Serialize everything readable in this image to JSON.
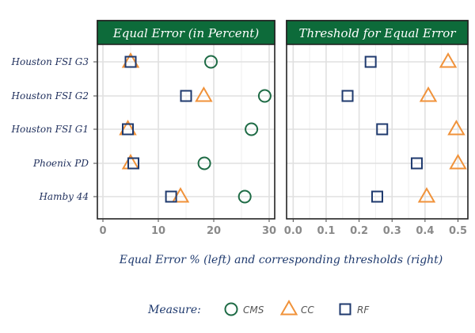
{
  "chart_data": {
    "type": "scatter",
    "categories": [
      "Houston FSI G3",
      "Houston FSI G2",
      "Houston FSI G1",
      "Phoenix PD",
      "Hamby 44"
    ],
    "xlabel": "Equal Error % (left) and corresponding thresholds (right)",
    "legend": {
      "title": "Measure:",
      "placement": "bottom",
      "entries": [
        {
          "name": "CMS",
          "shape": "circle",
          "color": "#1e6b45"
        },
        {
          "name": "CC",
          "shape": "triangle",
          "color": "#f0923a"
        },
        {
          "name": "RF",
          "shape": "square",
          "color": "#1f3a6e"
        }
      ]
    },
    "grid": true,
    "panels": [
      {
        "title": "Equal Error (in Percent)",
        "xlim": [
          -1,
          31
        ],
        "xticks": [
          0,
          10,
          20,
          30
        ],
        "xtick_labels": [
          "0",
          "10",
          "20",
          "30"
        ],
        "series": [
          {
            "name": "CMS",
            "values": [
              19.5,
              29.2,
              26.8,
              18.3,
              25.6
            ]
          },
          {
            "name": "CC",
            "values": [
              5.0,
              18.2,
              4.5,
              5.0,
              14.0
            ]
          },
          {
            "name": "RF",
            "values": [
              5.0,
              15.0,
              4.5,
              5.5,
              12.3
            ]
          }
        ]
      },
      {
        "title": "Threshold for Equal Error",
        "xlim": [
          -0.02,
          0.53
        ],
        "xticks": [
          0.0,
          0.1,
          0.2,
          0.3,
          0.4,
          0.5
        ],
        "xtick_labels": [
          "0.0",
          "0.1",
          "0.2",
          "0.3",
          "0.4",
          "0.5"
        ],
        "series": [
          {
            "name": "CMS",
            "values": []
          },
          {
            "name": "CC",
            "values": [
              0.47,
              0.41,
              0.495,
              0.5,
              0.405
            ]
          },
          {
            "name": "RF",
            "values": [
              0.235,
              0.165,
              0.27,
              0.375,
              0.255
            ]
          }
        ]
      }
    ]
  }
}
